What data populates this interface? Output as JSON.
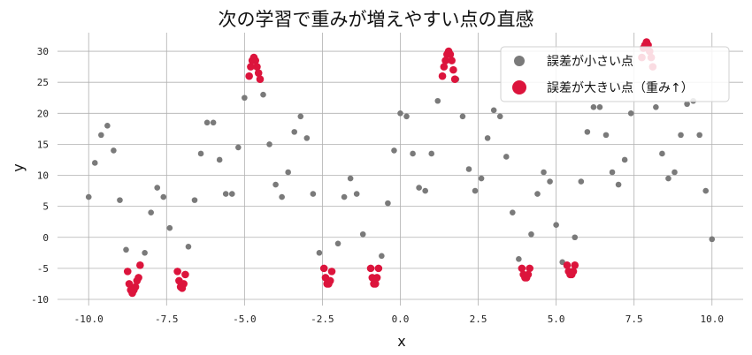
{
  "chart_data": {
    "type": "scatter",
    "title": "次の学習で重みが増えやすい点の直感",
    "xlabel": "x",
    "ylabel": "y",
    "xlim": [
      -11,
      11
    ],
    "ylim": [
      -11,
      33
    ],
    "xticks": [
      -10,
      -7.5,
      -5,
      -2.5,
      0,
      2.5,
      5,
      7.5,
      10
    ],
    "xtick_labels": [
      "-10.0",
      "-7.5",
      "-5.0",
      "-2.5",
      "0.0",
      "2.5",
      "5.0",
      "7.5",
      "10.0"
    ],
    "yticks": [
      -10,
      -5,
      0,
      5,
      10,
      15,
      20,
      25,
      30
    ],
    "ytick_labels": [
      "-10",
      "-5",
      "0",
      "5",
      "10",
      "15",
      "20",
      "25",
      "30"
    ],
    "grid": true,
    "legend_position": "top-right",
    "series": [
      {
        "name": "誤差が小さい点",
        "color": "#7a7a7a",
        "x": [
          -10.0,
          -9.8,
          -9.6,
          -9.4,
          -9.2,
          -9.0,
          -8.8,
          -8.2,
          -8.0,
          -7.8,
          -7.6,
          -7.4,
          -6.8,
          -6.6,
          -6.4,
          -6.2,
          -6.0,
          -5.8,
          -5.6,
          -5.4,
          -5.2,
          -5.0,
          -4.4,
          -4.2,
          -4.0,
          -3.8,
          -3.6,
          -3.4,
          -3.2,
          -3.0,
          -2.8,
          -2.6,
          -2.0,
          -1.8,
          -1.6,
          -1.4,
          -1.2,
          -0.6,
          -0.4,
          -0.2,
          0.0,
          0.2,
          0.4,
          0.6,
          0.8,
          1.0,
          1.2,
          1.8,
          2.0,
          2.2,
          2.4,
          2.6,
          2.8,
          3.0,
          3.2,
          3.4,
          3.6,
          3.8,
          4.2,
          4.4,
          4.6,
          4.8,
          5.0,
          5.2,
          5.6,
          5.8,
          6.0,
          6.2,
          6.4,
          6.6,
          6.8,
          7.0,
          7.2,
          7.4,
          8.2,
          8.4,
          8.6,
          8.8,
          9.0,
          9.2,
          9.4,
          9.6,
          9.8,
          10.0
        ],
        "y": [
          6.5,
          12.0,
          16.5,
          18.0,
          14.0,
          6.0,
          -2.0,
          -2.5,
          4.0,
          8.0,
          6.5,
          1.5,
          -1.5,
          6.0,
          13.5,
          18.5,
          18.5,
          12.5,
          7.0,
          7.0,
          14.5,
          22.5,
          23.0,
          15.0,
          8.5,
          6.5,
          10.5,
          17.0,
          19.5,
          16.0,
          7.0,
          -2.5,
          -1.0,
          6.5,
          9.5,
          7.0,
          0.5,
          -3.0,
          5.5,
          14.0,
          20.0,
          19.5,
          13.5,
          8.0,
          7.5,
          13.5,
          22.0,
          25.5,
          19.5,
          11.0,
          7.5,
          9.5,
          16.0,
          20.5,
          19.5,
          13.0,
          4.0,
          -3.5,
          0.5,
          7.0,
          10.5,
          9.0,
          2.0,
          -4.0,
          0.0,
          9.0,
          17.0,
          21.0,
          21.0,
          16.5,
          10.5,
          8.5,
          12.5,
          20.0,
          21.0,
          13.5,
          9.5,
          10.5,
          16.5,
          21.5,
          22.0,
          16.5,
          7.5,
          -0.3
        ]
      },
      {
        "name": "誤差が大きい点（重み↑）",
        "color": "#dc143c",
        "x": [
          -8.75,
          -8.7,
          -8.65,
          -8.6,
          -8.55,
          -8.5,
          -8.45,
          -8.4,
          -8.35,
          -7.15,
          -7.1,
          -7.05,
          -7.0,
          -6.95,
          -6.9,
          -4.85,
          -4.8,
          -4.75,
          -4.7,
          -4.65,
          -4.6,
          -4.55,
          -4.5,
          -2.45,
          -2.4,
          -2.35,
          -2.3,
          -2.25,
          -2.2,
          -0.95,
          -0.9,
          -0.85,
          -0.8,
          -0.75,
          -0.7,
          1.35,
          1.4,
          1.45,
          1.5,
          1.55,
          1.6,
          1.65,
          1.7,
          1.75,
          3.9,
          3.95,
          4.0,
          4.05,
          4.1,
          4.15,
          5.35,
          5.4,
          5.45,
          5.5,
          5.55,
          5.6,
          7.75,
          7.8,
          7.85,
          7.9,
          7.95,
          8.0,
          8.05,
          8.1
        ],
        "y": [
          -5.5,
          -7.5,
          -8.5,
          -9.0,
          -8.5,
          -8.0,
          -7.0,
          -6.5,
          -4.5,
          -5.5,
          -7.0,
          -8.0,
          -8.2,
          -7.5,
          -6.0,
          26.0,
          27.5,
          28.5,
          29.0,
          28.5,
          27.5,
          26.5,
          25.5,
          -5.0,
          -6.5,
          -7.5,
          -7.5,
          -7.0,
          -5.5,
          -5.0,
          -6.5,
          -7.5,
          -7.5,
          -6.5,
          -5.0,
          26.0,
          27.5,
          28.5,
          29.5,
          30.0,
          29.5,
          28.5,
          27.0,
          25.5,
          -5.0,
          -6.0,
          -6.5,
          -6.5,
          -6.0,
          -5.0,
          -4.5,
          -5.5,
          -6.0,
          -6.0,
          -5.5,
          -4.5,
          29.0,
          30.5,
          31.0,
          31.5,
          31.0,
          30.0,
          29.0,
          27.5
        ]
      }
    ]
  }
}
